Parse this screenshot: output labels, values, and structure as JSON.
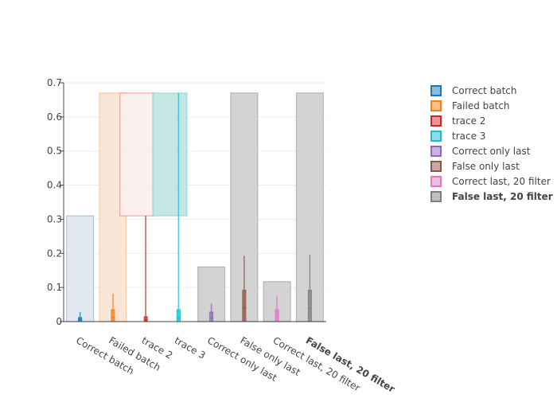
{
  "chart_data": {
    "type": "box",
    "title": "",
    "xlabel": "",
    "ylabel": "",
    "ylim": [
      0,
      0.7
    ],
    "yticks": [
      0,
      0.1,
      0.2,
      0.3,
      0.4,
      0.5,
      0.6,
      0.7
    ],
    "ytick_labels": [
      "0",
      "0.1",
      "0.2",
      "0.3",
      "0.4",
      "0.5",
      "0.6",
      "0.7"
    ],
    "grid": true,
    "legend_position": "right",
    "categories": [
      "Correct batch",
      "Failed batch",
      "trace 2",
      "trace 3",
      "Correct only last",
      "False only last",
      "Correct last, 20 filter",
      "False last, 20 filter"
    ],
    "series": [
      {
        "name": "Correct batch",
        "color": "#1f77b4",
        "fill": "#dde7f1",
        "bar_height": 0.31,
        "whisker": [
          0.0,
          0.028
        ],
        "box": [
          0.0,
          0.012
        ],
        "median": 0.006,
        "bold": false
      },
      {
        "name": "Failed batch",
        "color": "#ff7f0e",
        "fill": "#f7e4d2",
        "bar_height": 0.67,
        "whisker": [
          0.0,
          0.082
        ],
        "box": [
          0.0,
          0.035
        ],
        "median": 0.012,
        "bold": false
      },
      {
        "name": "trace 2",
        "color": "#d62728",
        "fill": "#fbeeed",
        "bar_range": [
          0.31,
          0.67
        ],
        "whisker": [
          0.0,
          0.31
        ],
        "box": [
          0.0,
          0.014
        ],
        "median": 0.005,
        "bold": false
      },
      {
        "name": "trace 3",
        "color": "#17becf",
        "fill": "#bfe3df",
        "bar_range": [
          0.31,
          0.67
        ],
        "whisker": [
          0.0,
          0.67
        ],
        "box": [
          0.0,
          0.035
        ],
        "median": 0.01,
        "bold": false
      },
      {
        "name": "Correct only last",
        "color": "#9467bd",
        "fill": "#d3d3d3",
        "bar_height": 0.16,
        "whisker": [
          0.0,
          0.053
        ],
        "box": [
          0.0,
          0.028
        ],
        "median": 0.01,
        "bold": false
      },
      {
        "name": "False only last",
        "color": "#8c564b",
        "fill": "#d3d3d3",
        "bar_height": 0.67,
        "whisker": [
          0.0,
          0.193
        ],
        "box": [
          0.0,
          0.092
        ],
        "median": 0.04,
        "bold": false
      },
      {
        "name": "Correct last, 20 filter",
        "color": "#e377c2",
        "fill": "#d3d3d3",
        "bar_height": 0.117,
        "whisker": [
          0.0,
          0.076
        ],
        "box": [
          0.0,
          0.035
        ],
        "median": 0.015,
        "bold": false
      },
      {
        "name": "False last, 20 filter",
        "color": "#7f7f7f",
        "fill": "#d3d3d3",
        "bar_height": 0.67,
        "whisker": [
          0.0,
          0.196
        ],
        "box": [
          0.0,
          0.092
        ],
        "median": 0.04,
        "bold": true
      }
    ]
  }
}
